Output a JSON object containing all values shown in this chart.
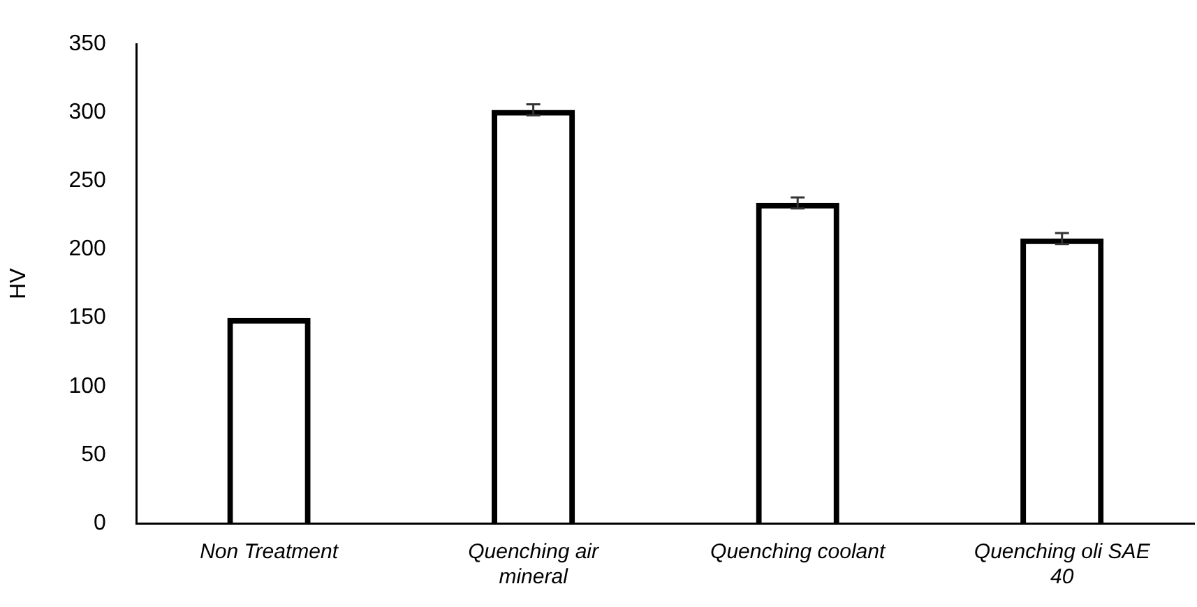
{
  "chart_data": {
    "type": "bar",
    "ylabel": "HV",
    "categories": [
      "Non Treatment",
      "Quenching air mineral",
      "Quenching coolant",
      "Quenching oli SAE 40"
    ],
    "values": [
      150,
      302,
      234,
      208
    ],
    "errors": [
      null,
      4,
      4,
      4
    ],
    "color": "#000000",
    "ylim": [
      0,
      350
    ],
    "yticks": [
      0,
      50,
      100,
      150,
      200,
      250,
      300,
      350
    ]
  }
}
